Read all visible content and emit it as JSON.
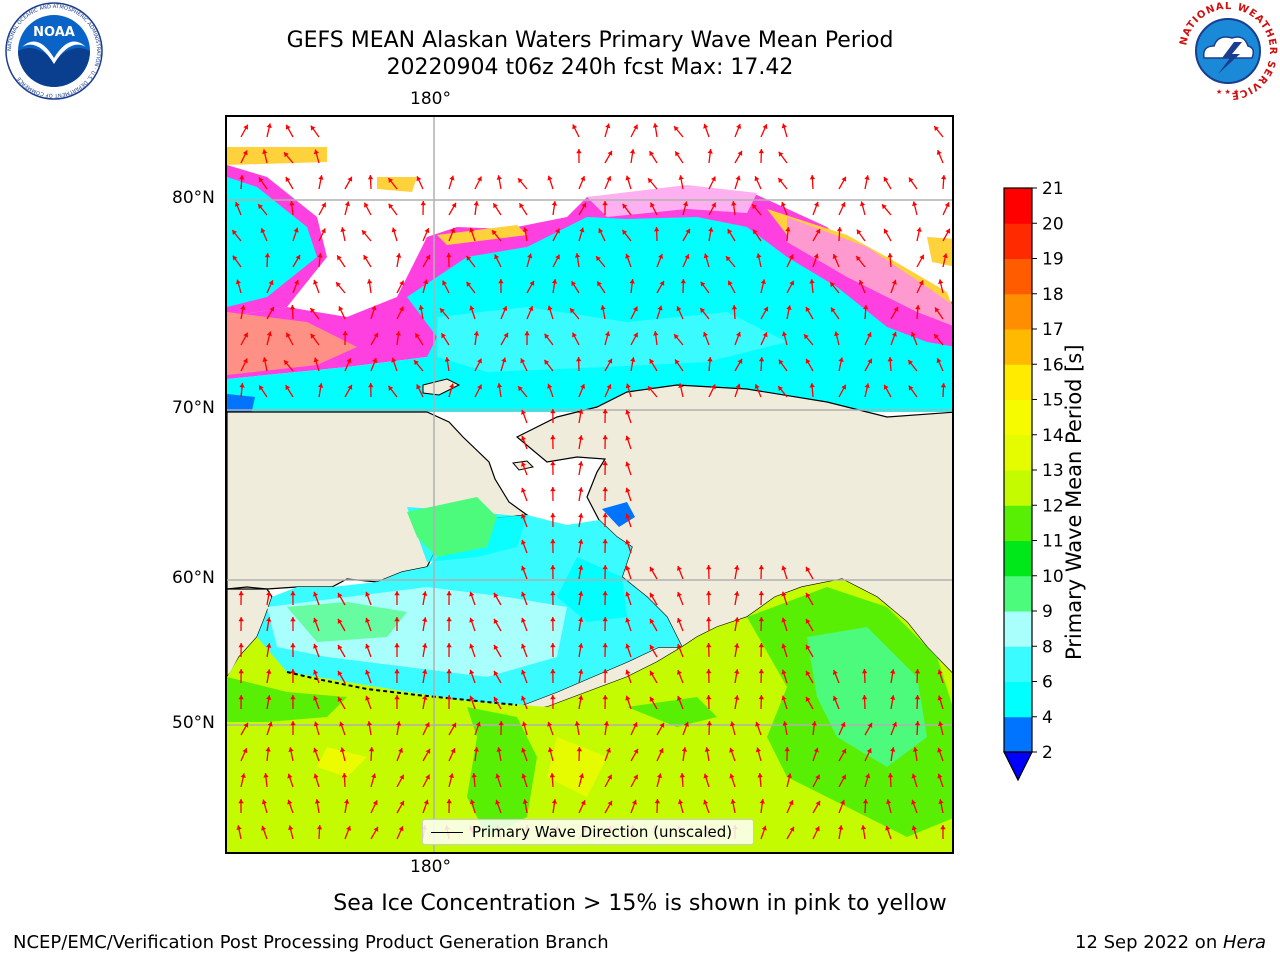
{
  "title": {
    "line1": "GEFS MEAN Alaskan Waters Primary Wave Mean Period",
    "line2": "20220904 t06z 240h fcst   Max: 17.42"
  },
  "map": {
    "top_lon_label": "180°",
    "bottom_lon_label": "180°",
    "lat_labels": [
      "80°N",
      "70°N",
      "60°N",
      "50°N"
    ],
    "legend_label": "Primary Wave Direction (unscaled)",
    "land_color": "#efecdc",
    "arrow_color": "#ff0000"
  },
  "colorbar": {
    "label": "Primary Wave Mean Period [s]",
    "ticks": [
      "2",
      "4",
      "6",
      "8",
      "9",
      "10",
      "11",
      "12",
      "13",
      "14",
      "15",
      "16",
      "17",
      "18",
      "19",
      "20",
      "21"
    ],
    "colors": [
      "#0074ff",
      "#00ffff",
      "#3afbff",
      "#a8fffc",
      "#4cfa7c",
      "#00e81a",
      "#59ef04",
      "#c4fb00",
      "#e4fb00",
      "#f7fb00",
      "#ffeb00",
      "#ffb900",
      "#ff8f00",
      "#ff5c00",
      "#ff2a00",
      "#ff0000"
    ],
    "under_color": "#0000ff"
  },
  "note": "Sea Ice Concentration > 15% is shown in pink to yellow",
  "footer": {
    "left": "NCEP/EMC/Verification Post Processing Product Generation Branch",
    "right_prefix": "12 Sep 2022 on ",
    "right_host": "Hera"
  },
  "logos": {
    "noaa": "NOAA",
    "noaa_ring": "NATIONAL OCEANIC AND ATMOSPHERIC ADMINISTRATION · U.S. DEPARTMENT OF COMMERCE",
    "nws_ring": "NATIONAL WEATHER SERVICE"
  }
}
